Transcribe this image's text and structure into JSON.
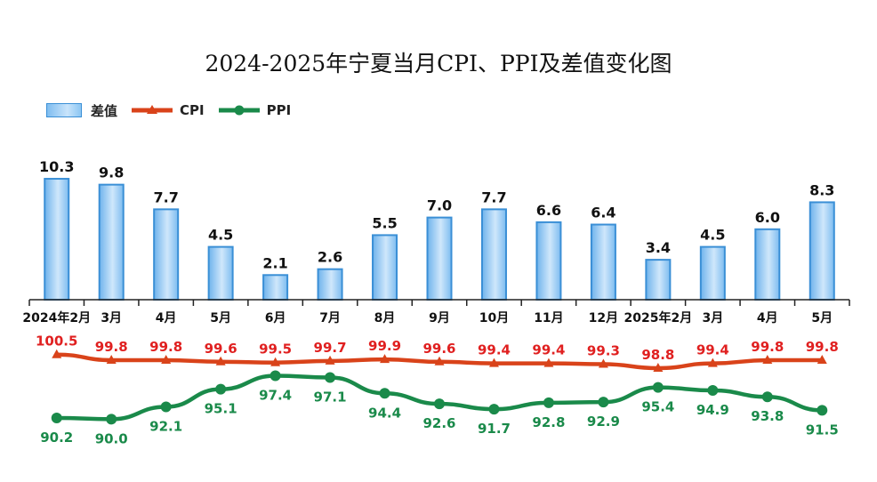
{
  "chart_data": {
    "type": "bar",
    "title": "2024-2025年宁夏当月CPI、PPI及差值变化图",
    "categories": [
      "2024年2月",
      "3月",
      "4月",
      "5月",
      "6月",
      "7月",
      "8月",
      "9月",
      "10月",
      "11月",
      "12月",
      "2025年2月",
      "3月",
      "4月",
      "5月"
    ],
    "series": [
      {
        "name": "差值",
        "type": "bar",
        "color": "#3a8fd6",
        "values": [
          10.3,
          9.8,
          7.7,
          4.5,
          2.1,
          2.6,
          5.5,
          7.0,
          7.7,
          6.6,
          6.4,
          3.4,
          4.5,
          6.0,
          8.3
        ],
        "labels": [
          "10.3",
          "9.8",
          "7.7",
          "4.5",
          "2.1",
          "2.6",
          "5.5",
          "7.0",
          "7.7",
          "6.6",
          "6.4",
          "3.4",
          "4.5",
          "6.0",
          "8.3"
        ]
      },
      {
        "name": "CPI",
        "type": "line",
        "marker": "triangle",
        "color": "#d9431a",
        "label_color": "#e02020",
        "values": [
          100.5,
          99.8,
          99.8,
          99.6,
          99.5,
          99.7,
          99.9,
          99.6,
          99.4,
          99.4,
          99.3,
          98.8,
          99.4,
          99.8,
          99.8
        ],
        "labels": [
          "100.5",
          "99.8",
          "99.8",
          "99.6",
          "99.5",
          "99.7",
          "99.9",
          "99.6",
          "99.4",
          "99.4",
          "99.3",
          "98.8",
          "99.4",
          "99.8",
          "99.8"
        ]
      },
      {
        "name": "PPI",
        "type": "line",
        "marker": "circle",
        "color": "#1a8a4a",
        "label_color": "#1a8a4a",
        "values": [
          90.2,
          90.0,
          92.1,
          95.1,
          97.4,
          97.1,
          94.4,
          92.6,
          91.7,
          92.8,
          92.9,
          95.4,
          94.9,
          93.8,
          91.5
        ],
        "labels": [
          "90.2",
          "90.0",
          "92.1",
          "95.1",
          "97.4",
          "97.1",
          "94.4",
          "92.6",
          "91.7",
          "92.8",
          "92.9",
          "95.4",
          "94.9",
          "93.8",
          "91.5"
        ]
      }
    ],
    "legend_position": "top-left",
    "grid": false
  }
}
